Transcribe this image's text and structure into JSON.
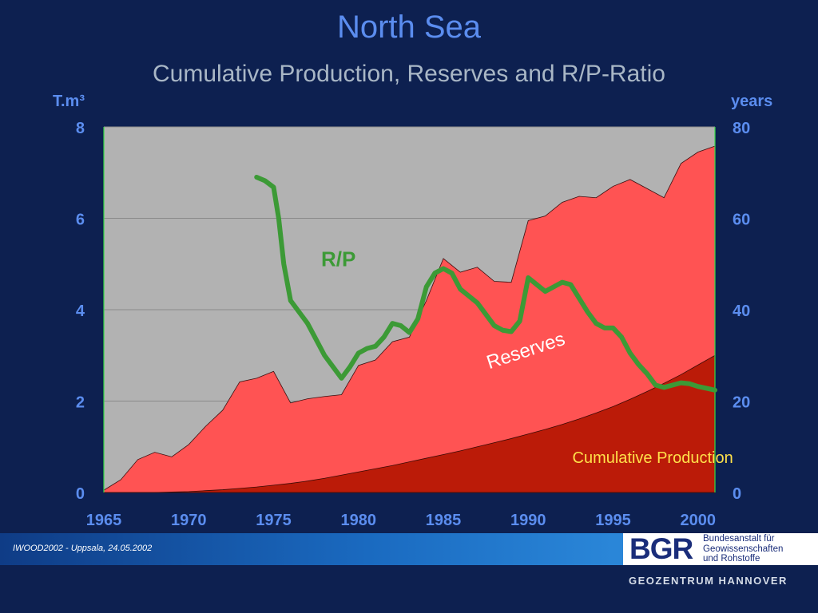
{
  "slide": {
    "title": "North Sea",
    "subtitle": "Cumulative Production, Reserves and R/P-Ratio",
    "left_unit": "T.m³",
    "right_unit": "years",
    "footer_text": "IWOOD2002 - Uppsala, 24.05.2002",
    "logo_text": "BGR",
    "logo_lines": [
      "Bundesanstalt für",
      "Geowissenschaften",
      "und Rohstoffe"
    ],
    "bottom_brand": "GEOZENTRUM HANNOVER"
  },
  "colors": {
    "background": "#0d2050",
    "plot_background": "#b2b2b2",
    "reserves_area": "#ff5353",
    "production_area": "#bb1b08",
    "rp_line": "#3c9a36",
    "title": "#5b8def",
    "subtitle": "#a9b7c6"
  },
  "chart_data": {
    "type": "area",
    "title": "",
    "x_ticks": [
      1965,
      1970,
      1975,
      1980,
      1985,
      1990,
      1995,
      2000
    ],
    "xlim": [
      1965,
      2001
    ],
    "y_left": {
      "label": "T.m³",
      "lim": [
        0,
        8
      ],
      "ticks": [
        0,
        2,
        4,
        6,
        8
      ]
    },
    "y_right": {
      "label": "years",
      "lim": [
        0,
        80
      ],
      "ticks": [
        0,
        20,
        40,
        60,
        80
      ]
    },
    "grid": true,
    "series": [
      {
        "name": "Cumulative Production",
        "kind": "area",
        "axis": "left",
        "x": [
          1965,
          1966,
          1967,
          1968,
          1969,
          1970,
          1971,
          1972,
          1973,
          1974,
          1975,
          1976,
          1977,
          1978,
          1979,
          1980,
          1981,
          1982,
          1983,
          1984,
          1985,
          1986,
          1987,
          1988,
          1989,
          1990,
          1991,
          1992,
          1993,
          1994,
          1995,
          1996,
          1997,
          1998,
          1999,
          2000,
          2001
        ],
        "values": [
          0,
          0,
          0,
          0,
          0.01,
          0.02,
          0.04,
          0.06,
          0.09,
          0.12,
          0.16,
          0.2,
          0.25,
          0.31,
          0.38,
          0.45,
          0.52,
          0.59,
          0.67,
          0.75,
          0.83,
          0.91,
          1.0,
          1.09,
          1.18,
          1.28,
          1.38,
          1.49,
          1.61,
          1.74,
          1.88,
          2.04,
          2.21,
          2.39,
          2.58,
          2.79,
          3.0
        ]
      },
      {
        "name": "Reserves",
        "kind": "area",
        "axis": "left",
        "x": [
          1965,
          1966,
          1967,
          1968,
          1969,
          1970,
          1971,
          1972,
          1973,
          1974,
          1975,
          1976,
          1977,
          1978,
          1979,
          1980,
          1981,
          1982,
          1983,
          1984,
          1985,
          1986,
          1987,
          1988,
          1989,
          1990,
          1991,
          1992,
          1993,
          1994,
          1995,
          1996,
          1997,
          1998,
          1999,
          2000,
          2001
        ],
        "values": [
          0.05,
          0.28,
          0.72,
          0.88,
          0.78,
          1.05,
          1.45,
          1.8,
          2.42,
          2.5,
          2.65,
          1.96,
          2.05,
          2.1,
          2.14,
          2.78,
          2.9,
          3.3,
          3.4,
          4.2,
          5.12,
          4.82,
          4.93,
          4.62,
          4.6,
          5.95,
          6.05,
          6.35,
          6.48,
          6.45,
          6.7,
          6.85,
          6.65,
          6.45,
          7.2,
          7.45,
          7.58
        ]
      },
      {
        "name": "R/P",
        "kind": "line",
        "axis": "right",
        "x": [
          1974,
          1974.5,
          1975,
          1975.3,
          1975.6,
          1976,
          1976.5,
          1977,
          1977.5,
          1978,
          1978.5,
          1979,
          1979.5,
          1980,
          1980.5,
          1981,
          1981.5,
          1982,
          1982.5,
          1983,
          1983.5,
          1984,
          1984.5,
          1985,
          1985.5,
          1986,
          1986.5,
          1987,
          1987.5,
          1988,
          1988.5,
          1989,
          1989.5,
          1990,
          1990.5,
          1991,
          1991.5,
          1992,
          1992.5,
          1993,
          1993.5,
          1994,
          1994.5,
          1995,
          1995.5,
          1996,
          1996.5,
          1997,
          1997.5,
          1998,
          1998.5,
          1999,
          1999.5,
          2000,
          2000.5,
          2001
        ],
        "values": [
          69,
          68.2,
          66.8,
          60,
          50,
          42,
          39.5,
          37,
          33.5,
          30,
          27.5,
          25,
          27.5,
          30.5,
          31.5,
          32,
          34,
          37,
          36.5,
          35,
          38,
          45,
          48,
          49,
          48,
          44.5,
          43,
          41.5,
          39,
          36.5,
          35.5,
          35.2,
          37.5,
          47,
          45.5,
          44,
          45,
          46,
          45.5,
          42.5,
          39.5,
          37,
          36,
          36,
          34,
          30.5,
          28,
          26,
          23.5,
          23,
          23.5,
          24,
          23.8,
          23.2,
          22.8,
          22.4
        ]
      }
    ],
    "annotations": [
      {
        "text": "R/P",
        "x": 1977.8,
        "y_right": 49.5
      },
      {
        "text": "Reserves",
        "x": 1987.7,
        "y_left": 2.7,
        "rotate_deg": -18
      },
      {
        "text": "Cumulative Production",
        "x": 1992.6,
        "y_left": 0.65
      }
    ]
  }
}
